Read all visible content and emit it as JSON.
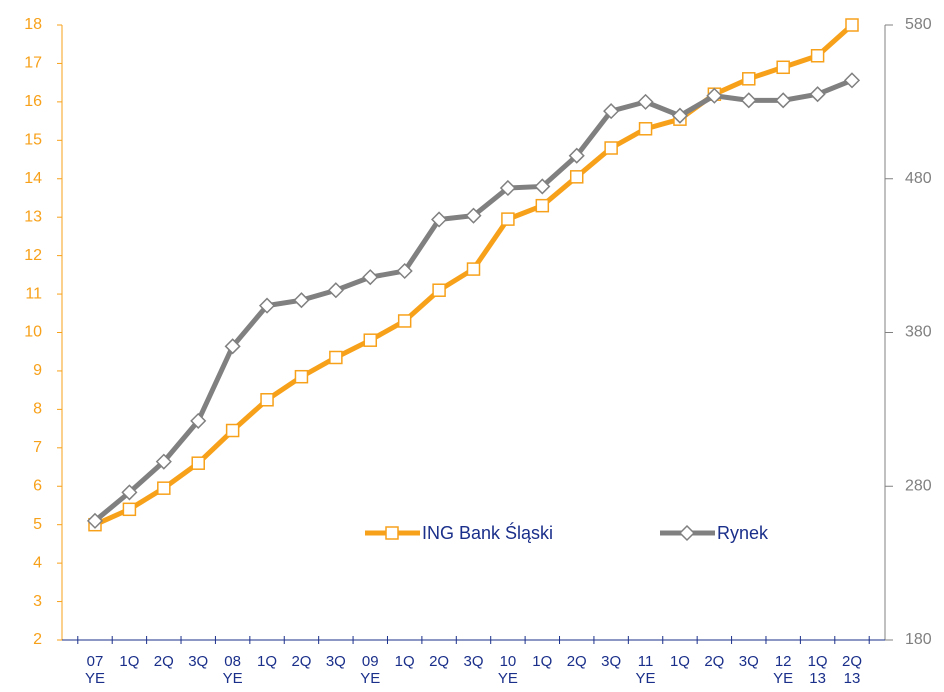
{
  "chart_data": {
    "type": "line",
    "categories": [
      "07\nYE",
      "1Q",
      "2Q",
      "3Q",
      "08\nYE",
      "1Q",
      "2Q",
      "3Q",
      "09\nYE",
      "1Q",
      "2Q",
      "3Q",
      "10\nYE",
      "1Q",
      "2Q",
      "3Q",
      "11\nYE",
      "1Q",
      "2Q",
      "3Q",
      "12\nYE",
      "1Q\n13",
      "2Q\n13"
    ],
    "series": [
      {
        "name": "ING Bank Śląski",
        "color": "#f7a11a",
        "axis": "y",
        "values": [
          5.0,
          5.4,
          5.95,
          6.6,
          7.45,
          8.25,
          8.85,
          9.35,
          9.8,
          10.3,
          11.1,
          11.65,
          12.95,
          13.3,
          14.05,
          14.8,
          15.3,
          15.55,
          16.2,
          16.6,
          16.9,
          17.2,
          18.0
        ]
      },
      {
        "name": "Rynek",
        "color": "#808080",
        "axis": "y2",
        "values": [
          257.5,
          276,
          296,
          322.5,
          371,
          397.5,
          401,
          407.5,
          416,
          420,
          453.5,
          456,
          474,
          475,
          495,
          524,
          530,
          521,
          534,
          531,
          531,
          535,
          544
        ]
      }
    ],
    "ylim": [
      2,
      18
    ],
    "yticks": [
      2,
      3,
      4,
      5,
      6,
      7,
      8,
      9,
      10,
      11,
      12,
      13,
      14,
      15,
      16,
      17,
      18
    ],
    "y2lim": [
      180,
      580
    ],
    "y2ticks": [
      180,
      280,
      380,
      480,
      580
    ],
    "legend": "center"
  }
}
